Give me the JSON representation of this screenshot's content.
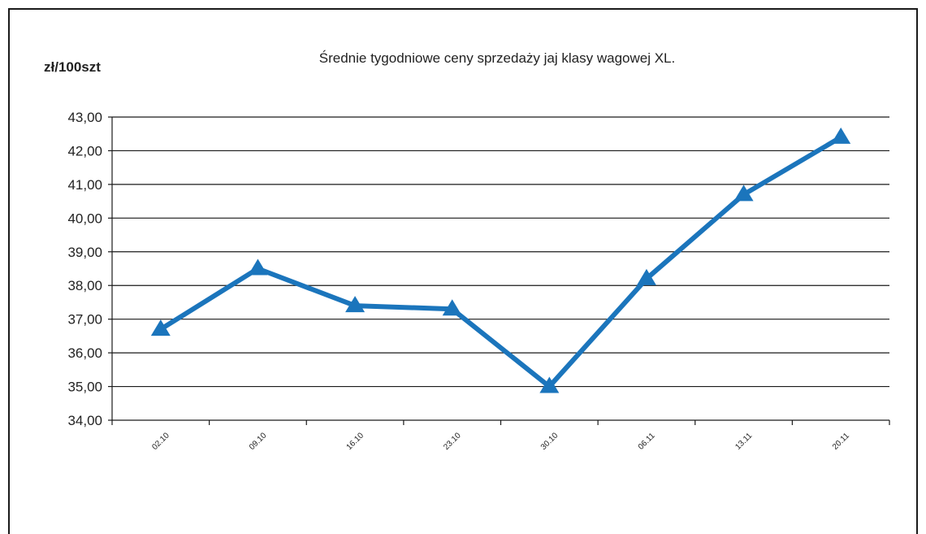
{
  "chart_data": {
    "type": "line",
    "title": "Średnie  tygodniowe  ceny  sprzedaży  jaj  klasy  wagowej  XL.",
    "ylabel": "zł/100szt",
    "xlabel": "",
    "categories": [
      "02.10",
      "09.10",
      "16.10",
      "23.10",
      "30.10",
      "06.11",
      "13.11",
      "20.11"
    ],
    "y_tick_labels": [
      "34,00",
      "35,00",
      "36,00",
      "37,00",
      "38,00",
      "39,00",
      "40,00",
      "41,00",
      "42,00",
      "43,00"
    ],
    "ylim": [
      34,
      43
    ],
    "y_ticks": [
      34,
      35,
      36,
      37,
      38,
      39,
      40,
      41,
      42,
      43
    ],
    "grid": true,
    "legend": "none",
    "marker": "triangle",
    "series": [
      {
        "values": [
          36.7,
          38.5,
          37.4,
          37.3,
          35.0,
          38.2,
          40.7,
          42.4
        ]
      }
    ],
    "colors": {
      "line": "#1b75bc",
      "grid": "#1a1a1a",
      "text": "#222222"
    }
  }
}
